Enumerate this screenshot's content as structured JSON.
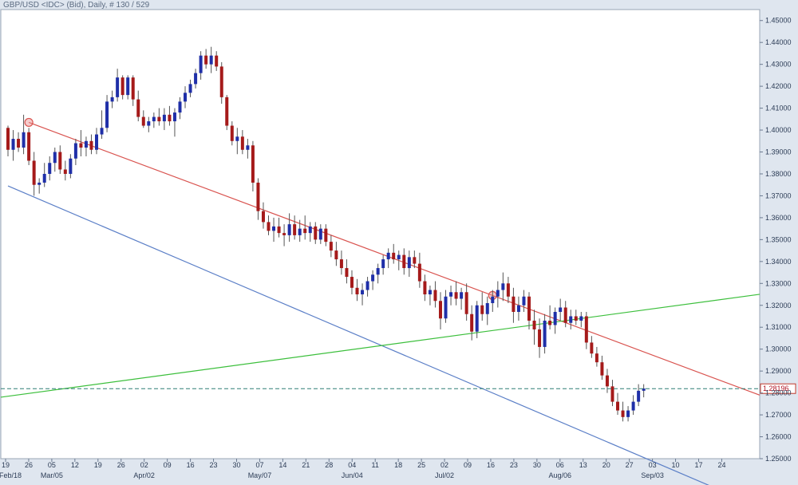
{
  "header": {
    "title": "GBP/USD <IDC> (Bid), Daily, # 130 / 529"
  },
  "colors": {
    "background": "#ffffff",
    "frame": "#dfe6ef",
    "up_candle": "#1f2fa8",
    "down_candle": "#a51a1a",
    "wick": "#555555",
    "upper_channel": "#d9534f",
    "lower_channel": "#5b7fc7",
    "green_line": "#3cbf3c",
    "price_line": "#2e7d73",
    "price_label_border": "#c0392b"
  },
  "chart_data": {
    "type": "candlestick",
    "ylim": [
      1.25,
      1.455
    ],
    "y_ticks": [
      "1.25000",
      "1.26000",
      "1.27000",
      "1.28000",
      "1.29000",
      "1.30000",
      "1.31000",
      "1.32000",
      "1.33000",
      "1.34000",
      "1.35000",
      "1.36000",
      "1.37000",
      "1.38000",
      "1.39000",
      "1.40000",
      "1.41000",
      "1.42000",
      "1.43000",
      "1.44000",
      "1.45000"
    ],
    "x_ticks": [
      "19",
      "26",
      "05",
      "12",
      "19",
      "26",
      "02",
      "09",
      "16",
      "23",
      "30",
      "07",
      "14",
      "21",
      "28",
      "04",
      "11",
      "18",
      "25",
      "02",
      "09",
      "16",
      "23",
      "30",
      "06",
      "13",
      "20",
      "27",
      "03",
      "10",
      "17",
      "24"
    ],
    "x_month_labels": [
      "Feb/18",
      "Mar/05",
      "Apr/02",
      "May/07",
      "Jun/04",
      "Jul/02",
      "Aug/06",
      "Sep/03"
    ],
    "last_price_label": "1.28196",
    "last_price": 1.28196,
    "candles": [
      {
        "o": 1.401,
        "h": 1.402,
        "l": 1.388,
        "c": 1.391
      },
      {
        "o": 1.391,
        "h": 1.4,
        "l": 1.386,
        "c": 1.396
      },
      {
        "o": 1.396,
        "h": 1.399,
        "l": 1.39,
        "c": 1.392
      },
      {
        "o": 1.392,
        "h": 1.407,
        "l": 1.389,
        "c": 1.399
      },
      {
        "o": 1.399,
        "h": 1.401,
        "l": 1.384,
        "c": 1.386
      },
      {
        "o": 1.386,
        "h": 1.39,
        "l": 1.37,
        "c": 1.375
      },
      {
        "o": 1.375,
        "h": 1.378,
        "l": 1.371,
        "c": 1.376
      },
      {
        "o": 1.376,
        "h": 1.385,
        "l": 1.374,
        "c": 1.38
      },
      {
        "o": 1.38,
        "h": 1.388,
        "l": 1.377,
        "c": 1.385
      },
      {
        "o": 1.385,
        "h": 1.392,
        "l": 1.381,
        "c": 1.39
      },
      {
        "o": 1.39,
        "h": 1.393,
        "l": 1.38,
        "c": 1.382
      },
      {
        "o": 1.382,
        "h": 1.386,
        "l": 1.377,
        "c": 1.38
      },
      {
        "o": 1.38,
        "h": 1.389,
        "l": 1.378,
        "c": 1.387
      },
      {
        "o": 1.387,
        "h": 1.396,
        "l": 1.384,
        "c": 1.394
      },
      {
        "o": 1.394,
        "h": 1.4,
        "l": 1.388,
        "c": 1.392
      },
      {
        "o": 1.392,
        "h": 1.397,
        "l": 1.388,
        "c": 1.395
      },
      {
        "o": 1.395,
        "h": 1.398,
        "l": 1.389,
        "c": 1.391
      },
      {
        "o": 1.391,
        "h": 1.401,
        "l": 1.389,
        "c": 1.398
      },
      {
        "o": 1.398,
        "h": 1.409,
        "l": 1.396,
        "c": 1.401
      },
      {
        "o": 1.401,
        "h": 1.416,
        "l": 1.399,
        "c": 1.413
      },
      {
        "o": 1.413,
        "h": 1.418,
        "l": 1.41,
        "c": 1.415
      },
      {
        "o": 1.415,
        "h": 1.428,
        "l": 1.413,
        "c": 1.424
      },
      {
        "o": 1.424,
        "h": 1.425,
        "l": 1.414,
        "c": 1.416
      },
      {
        "o": 1.416,
        "h": 1.425,
        "l": 1.414,
        "c": 1.424
      },
      {
        "o": 1.424,
        "h": 1.425,
        "l": 1.411,
        "c": 1.414
      },
      {
        "o": 1.414,
        "h": 1.418,
        "l": 1.404,
        "c": 1.406
      },
      {
        "o": 1.406,
        "h": 1.409,
        "l": 1.401,
        "c": 1.402
      },
      {
        "o": 1.402,
        "h": 1.406,
        "l": 1.399,
        "c": 1.404
      },
      {
        "o": 1.404,
        "h": 1.408,
        "l": 1.401,
        "c": 1.406
      },
      {
        "o": 1.406,
        "h": 1.41,
        "l": 1.402,
        "c": 1.404
      },
      {
        "o": 1.404,
        "h": 1.41,
        "l": 1.4,
        "c": 1.407
      },
      {
        "o": 1.407,
        "h": 1.411,
        "l": 1.402,
        "c": 1.404
      },
      {
        "o": 1.404,
        "h": 1.41,
        "l": 1.397,
        "c": 1.408
      },
      {
        "o": 1.408,
        "h": 1.415,
        "l": 1.405,
        "c": 1.413
      },
      {
        "o": 1.413,
        "h": 1.42,
        "l": 1.41,
        "c": 1.417
      },
      {
        "o": 1.417,
        "h": 1.423,
        "l": 1.415,
        "c": 1.421
      },
      {
        "o": 1.421,
        "h": 1.428,
        "l": 1.419,
        "c": 1.426
      },
      {
        "o": 1.426,
        "h": 1.436,
        "l": 1.423,
        "c": 1.434
      },
      {
        "o": 1.434,
        "h": 1.437,
        "l": 1.428,
        "c": 1.43
      },
      {
        "o": 1.43,
        "h": 1.438,
        "l": 1.426,
        "c": 1.434
      },
      {
        "o": 1.434,
        "h": 1.436,
        "l": 1.427,
        "c": 1.429
      },
      {
        "o": 1.429,
        "h": 1.431,
        "l": 1.412,
        "c": 1.415
      },
      {
        "o": 1.415,
        "h": 1.416,
        "l": 1.4,
        "c": 1.402
      },
      {
        "o": 1.402,
        "h": 1.404,
        "l": 1.393,
        "c": 1.395
      },
      {
        "o": 1.395,
        "h": 1.401,
        "l": 1.389,
        "c": 1.397
      },
      {
        "o": 1.397,
        "h": 1.4,
        "l": 1.389,
        "c": 1.391
      },
      {
        "o": 1.391,
        "h": 1.396,
        "l": 1.387,
        "c": 1.393
      },
      {
        "o": 1.393,
        "h": 1.395,
        "l": 1.372,
        "c": 1.376
      },
      {
        "o": 1.376,
        "h": 1.378,
        "l": 1.359,
        "c": 1.363
      },
      {
        "o": 1.363,
        "h": 1.367,
        "l": 1.355,
        "c": 1.358
      },
      {
        "o": 1.358,
        "h": 1.361,
        "l": 1.352,
        "c": 1.354
      },
      {
        "o": 1.354,
        "h": 1.36,
        "l": 1.349,
        "c": 1.356
      },
      {
        "o": 1.356,
        "h": 1.36,
        "l": 1.351,
        "c": 1.353
      },
      {
        "o": 1.353,
        "h": 1.357,
        "l": 1.347,
        "c": 1.352
      },
      {
        "o": 1.352,
        "h": 1.362,
        "l": 1.349,
        "c": 1.357
      },
      {
        "o": 1.357,
        "h": 1.361,
        "l": 1.35,
        "c": 1.352
      },
      {
        "o": 1.352,
        "h": 1.359,
        "l": 1.349,
        "c": 1.355
      },
      {
        "o": 1.355,
        "h": 1.361,
        "l": 1.35,
        "c": 1.353
      },
      {
        "o": 1.353,
        "h": 1.358,
        "l": 1.349,
        "c": 1.356
      },
      {
        "o": 1.356,
        "h": 1.358,
        "l": 1.348,
        "c": 1.35
      },
      {
        "o": 1.35,
        "h": 1.357,
        "l": 1.348,
        "c": 1.355
      },
      {
        "o": 1.355,
        "h": 1.357,
        "l": 1.347,
        "c": 1.349
      },
      {
        "o": 1.349,
        "h": 1.352,
        "l": 1.342,
        "c": 1.345
      },
      {
        "o": 1.345,
        "h": 1.349,
        "l": 1.338,
        "c": 1.341
      },
      {
        "o": 1.341,
        "h": 1.345,
        "l": 1.334,
        "c": 1.337
      },
      {
        "o": 1.337,
        "h": 1.341,
        "l": 1.33,
        "c": 1.333
      },
      {
        "o": 1.333,
        "h": 1.336,
        "l": 1.325,
        "c": 1.328
      },
      {
        "o": 1.328,
        "h": 1.332,
        "l": 1.322,
        "c": 1.325
      },
      {
        "o": 1.325,
        "h": 1.33,
        "l": 1.32,
        "c": 1.327
      },
      {
        "o": 1.327,
        "h": 1.333,
        "l": 1.324,
        "c": 1.331
      },
      {
        "o": 1.331,
        "h": 1.336,
        "l": 1.327,
        "c": 1.334
      },
      {
        "o": 1.334,
        "h": 1.339,
        "l": 1.33,
        "c": 1.337
      },
      {
        "o": 1.337,
        "h": 1.343,
        "l": 1.334,
        "c": 1.341
      },
      {
        "o": 1.341,
        "h": 1.346,
        "l": 1.337,
        "c": 1.344
      },
      {
        "o": 1.344,
        "h": 1.348,
        "l": 1.339,
        "c": 1.341
      },
      {
        "o": 1.341,
        "h": 1.345,
        "l": 1.336,
        "c": 1.343
      },
      {
        "o": 1.343,
        "h": 1.346,
        "l": 1.334,
        "c": 1.337
      },
      {
        "o": 1.337,
        "h": 1.345,
        "l": 1.333,
        "c": 1.342
      },
      {
        "o": 1.342,
        "h": 1.345,
        "l": 1.337,
        "c": 1.339
      },
      {
        "o": 1.339,
        "h": 1.344,
        "l": 1.328,
        "c": 1.331
      },
      {
        "o": 1.331,
        "h": 1.334,
        "l": 1.322,
        "c": 1.325
      },
      {
        "o": 1.325,
        "h": 1.329,
        "l": 1.32,
        "c": 1.327
      },
      {
        "o": 1.327,
        "h": 1.331,
        "l": 1.319,
        "c": 1.322
      },
      {
        "o": 1.322,
        "h": 1.326,
        "l": 1.309,
        "c": 1.314
      },
      {
        "o": 1.314,
        "h": 1.327,
        "l": 1.312,
        "c": 1.324
      },
      {
        "o": 1.324,
        "h": 1.329,
        "l": 1.32,
        "c": 1.326
      },
      {
        "o": 1.326,
        "h": 1.331,
        "l": 1.32,
        "c": 1.323
      },
      {
        "o": 1.323,
        "h": 1.328,
        "l": 1.318,
        "c": 1.326
      },
      {
        "o": 1.326,
        "h": 1.33,
        "l": 1.313,
        "c": 1.316
      },
      {
        "o": 1.316,
        "h": 1.32,
        "l": 1.304,
        "c": 1.308
      },
      {
        "o": 1.308,
        "h": 1.322,
        "l": 1.305,
        "c": 1.32
      },
      {
        "o": 1.32,
        "h": 1.326,
        "l": 1.313,
        "c": 1.316
      },
      {
        "o": 1.316,
        "h": 1.324,
        "l": 1.311,
        "c": 1.321
      },
      {
        "o": 1.321,
        "h": 1.327,
        "l": 1.317,
        "c": 1.324
      },
      {
        "o": 1.324,
        "h": 1.331,
        "l": 1.319,
        "c": 1.327
      },
      {
        "o": 1.327,
        "h": 1.335,
        "l": 1.322,
        "c": 1.33
      },
      {
        "o": 1.33,
        "h": 1.333,
        "l": 1.321,
        "c": 1.324
      },
      {
        "o": 1.324,
        "h": 1.328,
        "l": 1.312,
        "c": 1.317
      },
      {
        "o": 1.317,
        "h": 1.324,
        "l": 1.313,
        "c": 1.32
      },
      {
        "o": 1.32,
        "h": 1.327,
        "l": 1.317,
        "c": 1.324
      },
      {
        "o": 1.324,
        "h": 1.326,
        "l": 1.309,
        "c": 1.313
      },
      {
        "o": 1.313,
        "h": 1.318,
        "l": 1.302,
        "c": 1.309
      },
      {
        "o": 1.309,
        "h": 1.314,
        "l": 1.296,
        "c": 1.301
      },
      {
        "o": 1.301,
        "h": 1.316,
        "l": 1.298,
        "c": 1.313
      },
      {
        "o": 1.313,
        "h": 1.32,
        "l": 1.309,
        "c": 1.311
      },
      {
        "o": 1.311,
        "h": 1.319,
        "l": 1.307,
        "c": 1.317
      },
      {
        "o": 1.317,
        "h": 1.323,
        "l": 1.313,
        "c": 1.319
      },
      {
        "o": 1.319,
        "h": 1.322,
        "l": 1.31,
        "c": 1.312
      },
      {
        "o": 1.312,
        "h": 1.318,
        "l": 1.309,
        "c": 1.315
      },
      {
        "o": 1.315,
        "h": 1.318,
        "l": 1.311,
        "c": 1.313
      },
      {
        "o": 1.313,
        "h": 1.317,
        "l": 1.31,
        "c": 1.315
      },
      {
        "o": 1.315,
        "h": 1.317,
        "l": 1.3,
        "c": 1.303
      },
      {
        "o": 1.303,
        "h": 1.306,
        "l": 1.296,
        "c": 1.298
      },
      {
        "o": 1.298,
        "h": 1.301,
        "l": 1.292,
        "c": 1.294
      },
      {
        "o": 1.294,
        "h": 1.297,
        "l": 1.286,
        "c": 1.288
      },
      {
        "o": 1.288,
        "h": 1.291,
        "l": 1.28,
        "c": 1.283
      },
      {
        "o": 1.283,
        "h": 1.286,
        "l": 1.274,
        "c": 1.276
      },
      {
        "o": 1.276,
        "h": 1.28,
        "l": 1.27,
        "c": 1.272
      },
      {
        "o": 1.272,
        "h": 1.276,
        "l": 1.267,
        "c": 1.269
      },
      {
        "o": 1.269,
        "h": 1.274,
        "l": 1.267,
        "c": 1.272
      },
      {
        "o": 1.272,
        "h": 1.279,
        "l": 1.27,
        "c": 1.276
      },
      {
        "o": 1.276,
        "h": 1.284,
        "l": 1.274,
        "c": 1.281
      },
      {
        "o": 1.281,
        "h": 1.284,
        "l": 1.278,
        "c": 1.282
      }
    ],
    "lines": [
      {
        "name": "upper-channel",
        "color": "#d9534f",
        "p1": {
          "i": 4,
          "y": 1.4035
        },
        "p2": {
          "i": 93,
          "y": 1.3245
        },
        "extend_right": true,
        "extend_left": false,
        "anchor_circles": true
      },
      {
        "name": "lower-channel",
        "color": "#5b7fc7",
        "p1": {
          "i": 0,
          "y": 1.3745
        },
        "p2": {
          "i": 93,
          "y": 1.28
        },
        "extend_right": true,
        "extend_left": false,
        "anchor_circles": false
      },
      {
        "name": "green-line",
        "color": "#3cbf3c",
        "p1": {
          "i": 0,
          "y": 1.2785
        },
        "p2": {
          "i": 93,
          "y": 1.3085
        },
        "extend_right": true,
        "extend_left": true,
        "anchor_circles": false
      }
    ]
  }
}
